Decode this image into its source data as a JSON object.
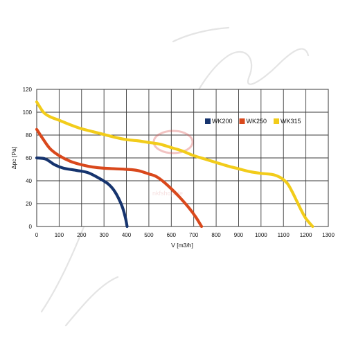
{
  "watermark": {
    "text": "nkfshop.de",
    "color": "#e6a8a8"
  },
  "chart_data": {
    "type": "line",
    "xlabel": "V [m3/h]",
    "ylabel": "Δpc [Pa]",
    "xlim": [
      0,
      1300
    ],
    "ylim": [
      0,
      120
    ],
    "xticks": [
      "0",
      "100",
      "200",
      "300",
      "400",
      "500",
      "600",
      "700",
      "800",
      "900",
      "1000",
      "1100",
      "1200",
      "1300"
    ],
    "yticks": [
      "0",
      "20",
      "40",
      "60",
      "80",
      "100",
      "120"
    ],
    "grid": true,
    "legend_position": "top-right",
    "series": [
      {
        "name": "WK200",
        "color": "#16346e",
        "points": [
          [
            0,
            60
          ],
          [
            40,
            59
          ],
          [
            80,
            54
          ],
          [
            120,
            51
          ],
          [
            180,
            49
          ],
          [
            230,
            47
          ],
          [
            280,
            42
          ],
          [
            320,
            37
          ],
          [
            350,
            30
          ],
          [
            380,
            18
          ],
          [
            395,
            8
          ],
          [
            403,
            0
          ]
        ]
      },
      {
        "name": "WK250",
        "color": "#d9481c",
        "points": [
          [
            0,
            85
          ],
          [
            30,
            76
          ],
          [
            60,
            68
          ],
          [
            100,
            62
          ],
          [
            150,
            57
          ],
          [
            200,
            54
          ],
          [
            250,
            52
          ],
          [
            300,
            51
          ],
          [
            350,
            50.5
          ],
          [
            400,
            50
          ],
          [
            450,
            49
          ],
          [
            500,
            46
          ],
          [
            530,
            44
          ],
          [
            560,
            40
          ],
          [
            600,
            33
          ],
          [
            640,
            25
          ],
          [
            680,
            16
          ],
          [
            710,
            8
          ],
          [
            735,
            0
          ]
        ]
      },
      {
        "name": "WK315",
        "color": "#f2cc1a",
        "points": [
          [
            0,
            109
          ],
          [
            30,
            100
          ],
          [
            60,
            96
          ],
          [
            100,
            93
          ],
          [
            150,
            89
          ],
          [
            200,
            85.5
          ],
          [
            250,
            83
          ],
          [
            300,
            80.5
          ],
          [
            350,
            78
          ],
          [
            400,
            76
          ],
          [
            450,
            75
          ],
          [
            500,
            73.5
          ],
          [
            550,
            72
          ],
          [
            600,
            69
          ],
          [
            650,
            66
          ],
          [
            700,
            62
          ],
          [
            750,
            59
          ],
          [
            800,
            56
          ],
          [
            850,
            53
          ],
          [
            900,
            50.5
          ],
          [
            950,
            48
          ],
          [
            1000,
            46.5
          ],
          [
            1050,
            45.5
          ],
          [
            1080,
            43.5
          ],
          [
            1100,
            41
          ],
          [
            1120,
            37
          ],
          [
            1140,
            30
          ],
          [
            1160,
            22
          ],
          [
            1180,
            14
          ],
          [
            1200,
            7
          ],
          [
            1230,
            0
          ]
        ]
      }
    ]
  }
}
